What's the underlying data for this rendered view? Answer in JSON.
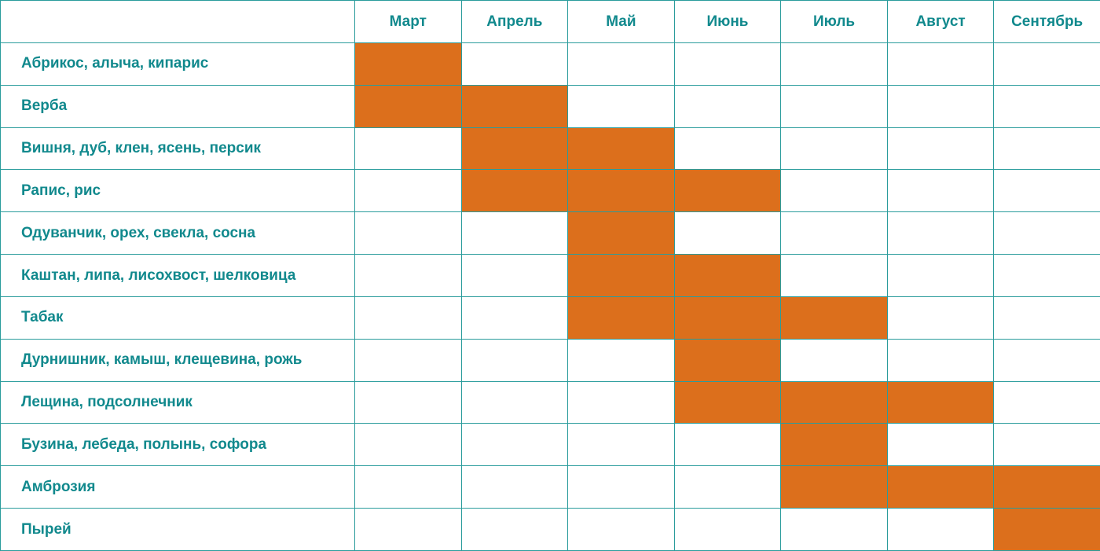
{
  "colors": {
    "grid": "#2a9c9c",
    "text": "#11898d",
    "active": "#dc6f1c",
    "background": "#ffffff"
  },
  "chart_data": {
    "type": "table",
    "title": "",
    "corner_label": "",
    "months": [
      "Март",
      "Апрель",
      "Май",
      "Июнь",
      "Июль",
      "Август",
      "Сентябрь"
    ],
    "rows": [
      {
        "label": "Абрикос, алыча, кипарис",
        "active": [
          1,
          0,
          0,
          0,
          0,
          0,
          0
        ]
      },
      {
        "label": "Верба",
        "active": [
          1,
          1,
          0,
          0,
          0,
          0,
          0
        ]
      },
      {
        "label": "Вишня, дуб, клен, ясень, персик",
        "active": [
          0,
          1,
          1,
          0,
          0,
          0,
          0
        ]
      },
      {
        "label": "Рапис, рис",
        "active": [
          0,
          1,
          1,
          1,
          0,
          0,
          0
        ]
      },
      {
        "label": "Одуванчик, орех, свекла, сосна",
        "active": [
          0,
          0,
          1,
          0,
          0,
          0,
          0
        ]
      },
      {
        "label": "Каштан, липа, лисохвост, шелковица",
        "active": [
          0,
          0,
          1,
          1,
          0,
          0,
          0
        ]
      },
      {
        "label": "Табак",
        "active": [
          0,
          0,
          1,
          1,
          1,
          0,
          0
        ]
      },
      {
        "label": "Дурнишник, камыш, клещевина, рожь",
        "active": [
          0,
          0,
          0,
          1,
          0,
          0,
          0
        ]
      },
      {
        "label": "Лещина, подсолнечник",
        "active": [
          0,
          0,
          0,
          1,
          1,
          1,
          0
        ]
      },
      {
        "label": "Бузина, лебеда, полынь, софора",
        "active": [
          0,
          0,
          0,
          0,
          1,
          0,
          0
        ]
      },
      {
        "label": "Амброзия",
        "active": [
          0,
          0,
          0,
          0,
          1,
          1,
          1
        ]
      },
      {
        "label": "Пырей",
        "active": [
          0,
          0,
          0,
          0,
          0,
          0,
          1
        ]
      }
    ]
  }
}
